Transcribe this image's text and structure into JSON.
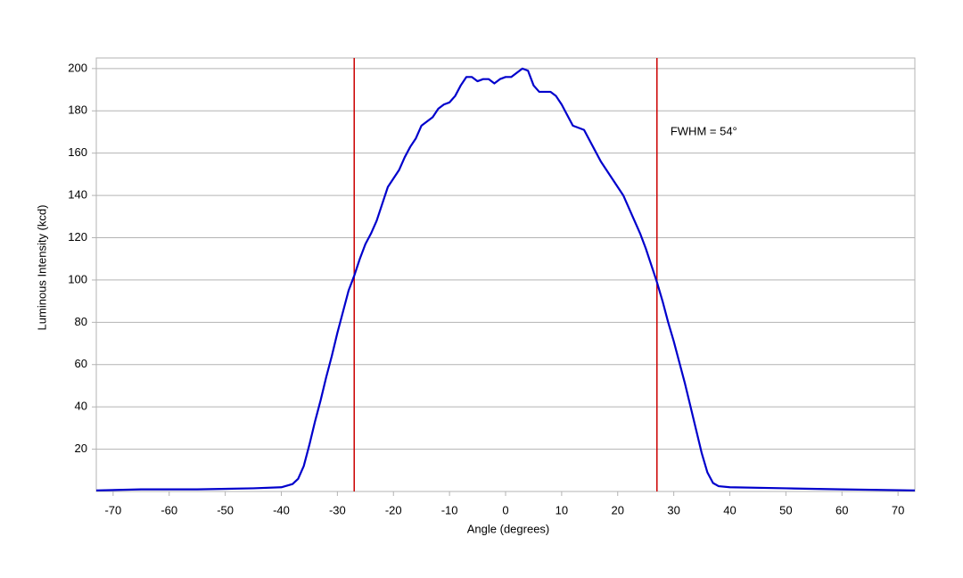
{
  "chart_data": {
    "type": "line",
    "xlabel": "Angle (degrees)",
    "ylabel": "Luminous Intensity (kcd)",
    "xlim": [
      -73,
      73
    ],
    "ylim": [
      0,
      205
    ],
    "xticks": [
      -70,
      -60,
      -50,
      -40,
      -30,
      -20,
      -10,
      0,
      10,
      20,
      30,
      40,
      50,
      60,
      70
    ],
    "yticks": [
      20,
      40,
      60,
      80,
      100,
      120,
      140,
      160,
      180,
      200
    ],
    "grid": true,
    "x": [
      -73,
      -65,
      -55,
      -45,
      -40,
      -38,
      -37,
      -36,
      -35,
      -34,
      -33,
      -32,
      -31,
      -30,
      -29,
      -28,
      -27,
      -26,
      -25,
      -24,
      -23,
      -22,
      -21,
      -20,
      -19,
      -18,
      -17,
      -16,
      -15,
      -14,
      -13,
      -12,
      -11,
      -10,
      -9,
      -8,
      -7,
      -6,
      -5,
      -4,
      -3,
      -2,
      -1,
      0,
      1,
      2,
      3,
      4,
      5,
      6,
      7,
      8,
      9,
      10,
      11,
      12,
      13,
      14,
      15,
      16,
      17,
      18,
      19,
      20,
      21,
      22,
      23,
      24,
      25,
      26,
      27,
      28,
      29,
      30,
      31,
      32,
      33,
      34,
      35,
      36,
      37,
      38,
      40,
      50,
      60,
      73
    ],
    "series": [
      {
        "color": "#0000cc",
        "values": [
          0.5,
          1,
          1,
          1.5,
          2,
          3.5,
          6,
          12,
          22,
          33,
          43,
          54,
          64,
          75,
          85,
          95,
          102,
          110,
          117,
          122,
          128,
          136,
          144,
          148,
          152,
          158,
          163,
          167,
          173,
          175,
          177,
          181,
          183,
          184,
          187,
          192,
          196,
          196,
          194,
          195,
          195,
          193,
          195,
          196,
          196,
          198,
          200,
          199,
          192,
          189,
          189,
          189,
          187,
          183,
          178,
          173,
          172,
          171,
          166,
          161,
          156,
          152,
          148,
          144,
          140,
          134,
          128,
          122,
          115,
          107,
          99,
          90,
          80,
          71,
          61,
          51,
          40,
          29,
          18,
          9,
          4,
          2.5,
          2,
          1.5,
          1,
          0.5
        ]
      }
    ],
    "vlines": [
      -27,
      27
    ],
    "vline_color": "#cc0000",
    "annotation": {
      "text": "FWHM = 54°",
      "x": 29.4,
      "y": 170
    }
  }
}
